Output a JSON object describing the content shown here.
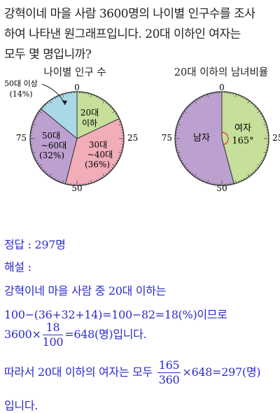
{
  "problem": {
    "lines": [
      "강혁이네 마을 사람 3600명의 나이별 인구수를 조사",
      "하여 나타낸 원그래프입니다. 20대 이하인 여자는",
      "모두 몇 명입니까?"
    ]
  },
  "chart_data": [
    {
      "type": "pie",
      "title": "나이별 인구 수",
      "ticks": [
        "0",
        "25",
        "50",
        "75"
      ],
      "slices": [
        {
          "label_line1": "20대",
          "label_line2": "이하",
          "percent_label": "",
          "value": 18,
          "color": "#c6df9a"
        },
        {
          "label_line1": "30대",
          "label_line2": "~40대",
          "percent_label": "(36%)",
          "value": 36,
          "color": "#f1adb8"
        },
        {
          "label_line1": "50대",
          "label_line2": "~60대",
          "percent_label": "(32%)",
          "value": 32,
          "color": "#bca0cf"
        },
        {
          "label_line1": "50대 이상",
          "label_line2": "",
          "percent_label": "(14%)",
          "value": 14,
          "color": "#a9d9e6"
        }
      ]
    },
    {
      "type": "pie",
      "title": "20대 이하의 남녀비율",
      "ticks": [
        "0",
        "25",
        "50",
        "75"
      ],
      "slices": [
        {
          "label_line1": "여자",
          "label_line2": "165°",
          "value": 165,
          "color": "#c6df9a"
        },
        {
          "label_line1": "남자",
          "label_line2": "",
          "value": 195,
          "color": "#bca0cf"
        }
      ]
    }
  ],
  "solution": {
    "answer_line": "정답 : 297명",
    "explain_label": "해설 :",
    "line1": "강혁이네 마을 사람 중 20대 이하는",
    "line2": "100−(36+32+14)=100−82=18(%)이므로",
    "line3_pre": "3600×",
    "line3_num": "18",
    "line3_den": "100",
    "line3_post": "=648(명)입니다.",
    "line4_pre": "따라서 20대 이하의 여자는 모두",
    "line4_num": "165",
    "line4_den": "360",
    "line4_post": "×648=297(명)",
    "line5": "입니다."
  }
}
